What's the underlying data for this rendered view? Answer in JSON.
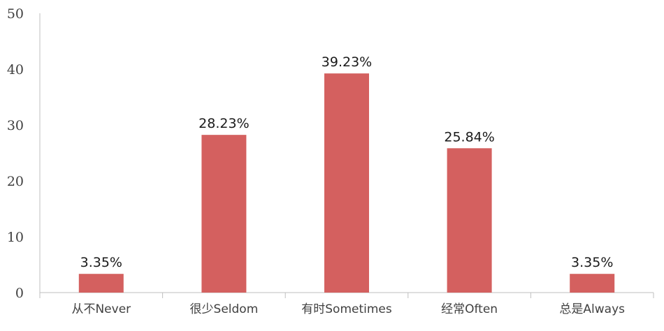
{
  "chart_data": {
    "type": "bar",
    "categories": [
      "从不Never",
      "很少Seldom",
      "有时Sometimes",
      "经常Often",
      "总是Always"
    ],
    "values": [
      3.35,
      28.23,
      39.23,
      25.84,
      3.35
    ],
    "data_labels": [
      "3.35%",
      "28.23%",
      "39.23%",
      "25.84%",
      "3.35%"
    ],
    "yticks": [
      "0",
      "10",
      "20",
      "30",
      "40",
      "50"
    ],
    "ylim": [
      0,
      50
    ],
    "title": "",
    "xlabel": "",
    "ylabel": "",
    "grid": false,
    "bar_color": "#d4605f"
  }
}
